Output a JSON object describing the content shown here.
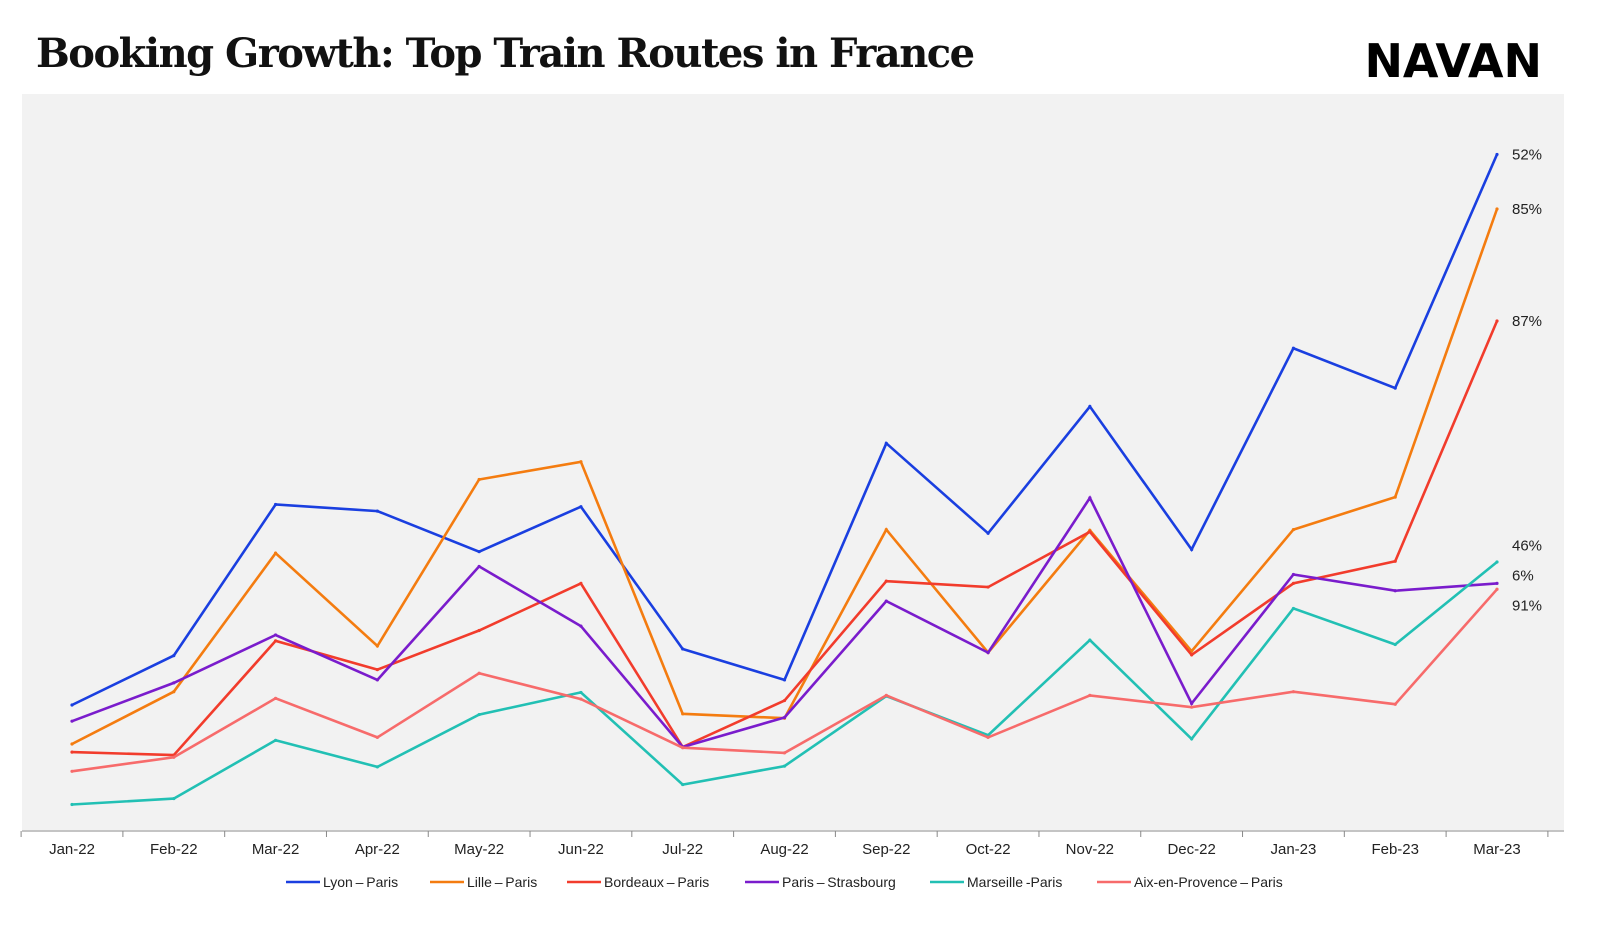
{
  "header": {
    "title": "Booking Growth: Top Train Routes in France",
    "logo_text": "NAVAN"
  },
  "chart_data": {
    "type": "line",
    "title": "Booking Growth: Top Train Routes in France",
    "xlabel": "",
    "ylabel": "",
    "categories": [
      "Jan-22",
      "Feb-22",
      "Mar-22",
      "Apr-22",
      "May-22",
      "Jun-22",
      "Jul-22",
      "Aug-22",
      "Sep-22",
      "Oct-22",
      "Nov-22",
      "Dec-22",
      "Jan-23",
      "Feb-23",
      "Mar-23"
    ],
    "ylim": [
      0,
      100
    ],
    "grid": false,
    "legend_position": "bottom",
    "series": [
      {
        "name": "Lyon – Paris",
        "color": "#1a3fe0",
        "end_label": "52%",
        "values": [
          17.1,
          23.8,
          44.3,
          43.4,
          37.9,
          44.0,
          24.7,
          20.5,
          52.6,
          40.4,
          57.6,
          38.2,
          65.5,
          60.1,
          91.8
        ]
      },
      {
        "name": "Lille – Paris",
        "color": "#f47c10",
        "end_label": "85%",
        "values": [
          11.8,
          18.9,
          37.7,
          25.1,
          47.7,
          50.1,
          15.9,
          15.3,
          40.9,
          24.2,
          40.8,
          24.4,
          40.9,
          45.3,
          84.4
        ]
      },
      {
        "name": "Bordeaux – Paris",
        "color": "#f23c2c",
        "end_label": "87%",
        "values": [
          10.7,
          10.3,
          25.8,
          21.9,
          27.2,
          33.6,
          11.4,
          17.7,
          33.9,
          33.1,
          40.6,
          23.9,
          33.6,
          36.6,
          69.2
        ]
      },
      {
        "name": "Paris – Strasbourg",
        "color": "#7a1ccc",
        "end_label": "6%",
        "values": [
          14.9,
          20.1,
          26.6,
          20.5,
          35.9,
          27.8,
          11.4,
          15.4,
          31.2,
          24.2,
          45.2,
          17.3,
          34.8,
          32.6,
          33.6
        ]
      },
      {
        "name": "Marseille -Paris",
        "color": "#22c0b4",
        "end_label": "46%",
        "values": [
          3.6,
          4.4,
          12.3,
          8.7,
          15.8,
          18.8,
          6.3,
          8.8,
          18.3,
          13.0,
          25.9,
          12.5,
          30.2,
          25.3,
          36.5
        ]
      },
      {
        "name": "Aix-en-Provence – Paris",
        "color": "#f76b6b",
        "end_label": "91%",
        "values": [
          8.1,
          10.0,
          18.0,
          12.7,
          21.4,
          17.9,
          11.3,
          10.6,
          18.4,
          12.7,
          18.4,
          16.8,
          18.9,
          17.2,
          32.8
        ]
      }
    ]
  }
}
